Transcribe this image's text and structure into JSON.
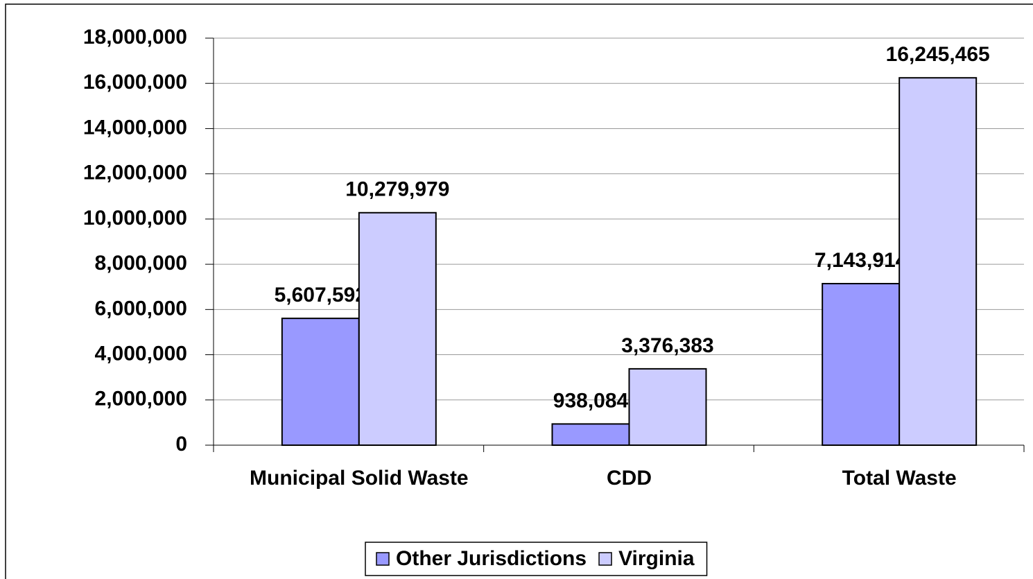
{
  "chart_data": {
    "type": "bar",
    "categories": [
      "Municipal Solid Waste",
      "CDD",
      "Total Waste"
    ],
    "series": [
      {
        "name": "Other Jurisdictions",
        "color": "#9999ff",
        "values": [
          5607592,
          938084,
          7143914
        ],
        "value_labels": [
          "5,607,592",
          "938,084",
          "7,143,914"
        ]
      },
      {
        "name": "Virginia",
        "color": "#ccccff",
        "values": [
          10279979,
          3376383,
          16245465
        ],
        "value_labels": [
          "10,279,979",
          "3,376,383",
          "16,245,465"
        ]
      }
    ],
    "ylim": [
      0,
      18000000
    ],
    "yticks": [
      0,
      {
        "value": 2000000,
        "label": "2,000,000"
      },
      {
        "value": 4000000,
        "label": "4,000,000"
      },
      {
        "value": 6000000,
        "label": "6,000,000"
      },
      {
        "value": 8000000,
        "label": "8,000,000"
      },
      {
        "value": 10000000,
        "label": "10,000,000"
      },
      {
        "value": 12000000,
        "label": "12,000,000"
      },
      {
        "value": 14000000,
        "label": "14,000,000"
      },
      {
        "value": 16000000,
        "label": "16,000,000"
      },
      {
        "value": 18000000,
        "label": "18,000,000"
      }
    ],
    "grid": true,
    "legend": "bottom"
  }
}
